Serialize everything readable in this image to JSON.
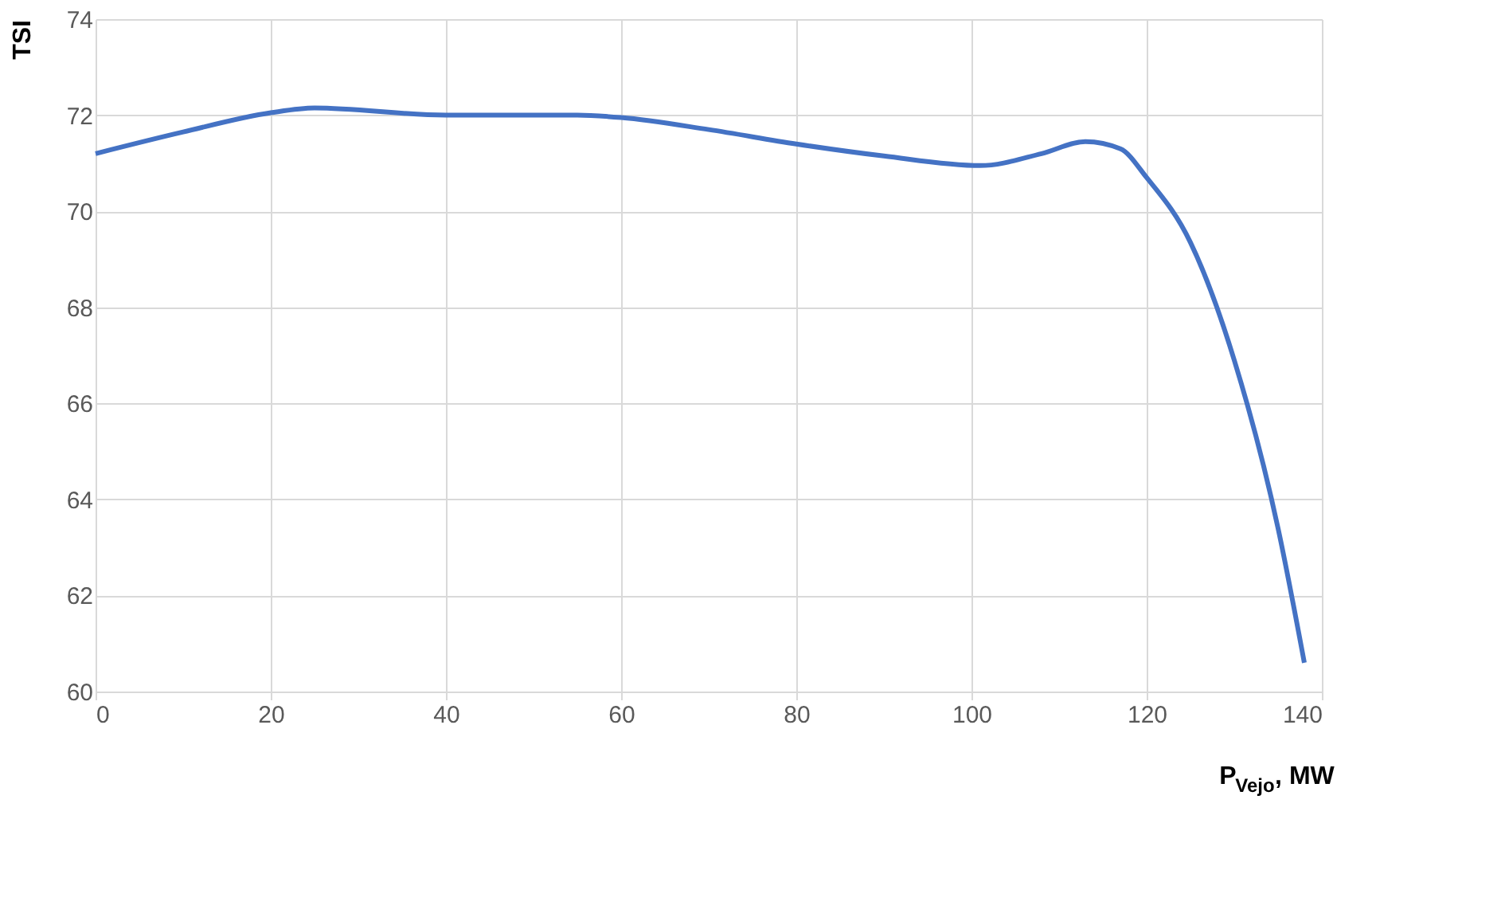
{
  "chart_data": {
    "type": "line",
    "xlabel": "P$_{Vejo}$, MW",
    "ylabel": "TSI",
    "x": [
      0,
      10,
      20,
      25,
      40,
      55,
      60,
      70,
      80,
      90,
      101,
      108,
      113,
      117,
      120,
      125,
      130,
      135,
      138
    ],
    "series": [
      {
        "color": "#4472c4",
        "values": [
          71.2,
          71.65,
          72.05,
          72.15,
          72.0,
          72.0,
          71.95,
          71.7,
          71.4,
          71.15,
          70.95,
          71.2,
          71.45,
          71.3,
          70.7,
          69.35,
          66.9,
          63.4,
          60.6
        ]
      }
    ],
    "xlim": [
      0,
      140
    ],
    "xticks": [
      0,
      20,
      40,
      60,
      80,
      100,
      120,
      140
    ],
    "ylim": [
      60,
      74
    ],
    "yticks": [
      60,
      62,
      64,
      66,
      68,
      70,
      72,
      74
    ],
    "grid": true,
    "marker": "none",
    "line_style": "solid"
  }
}
